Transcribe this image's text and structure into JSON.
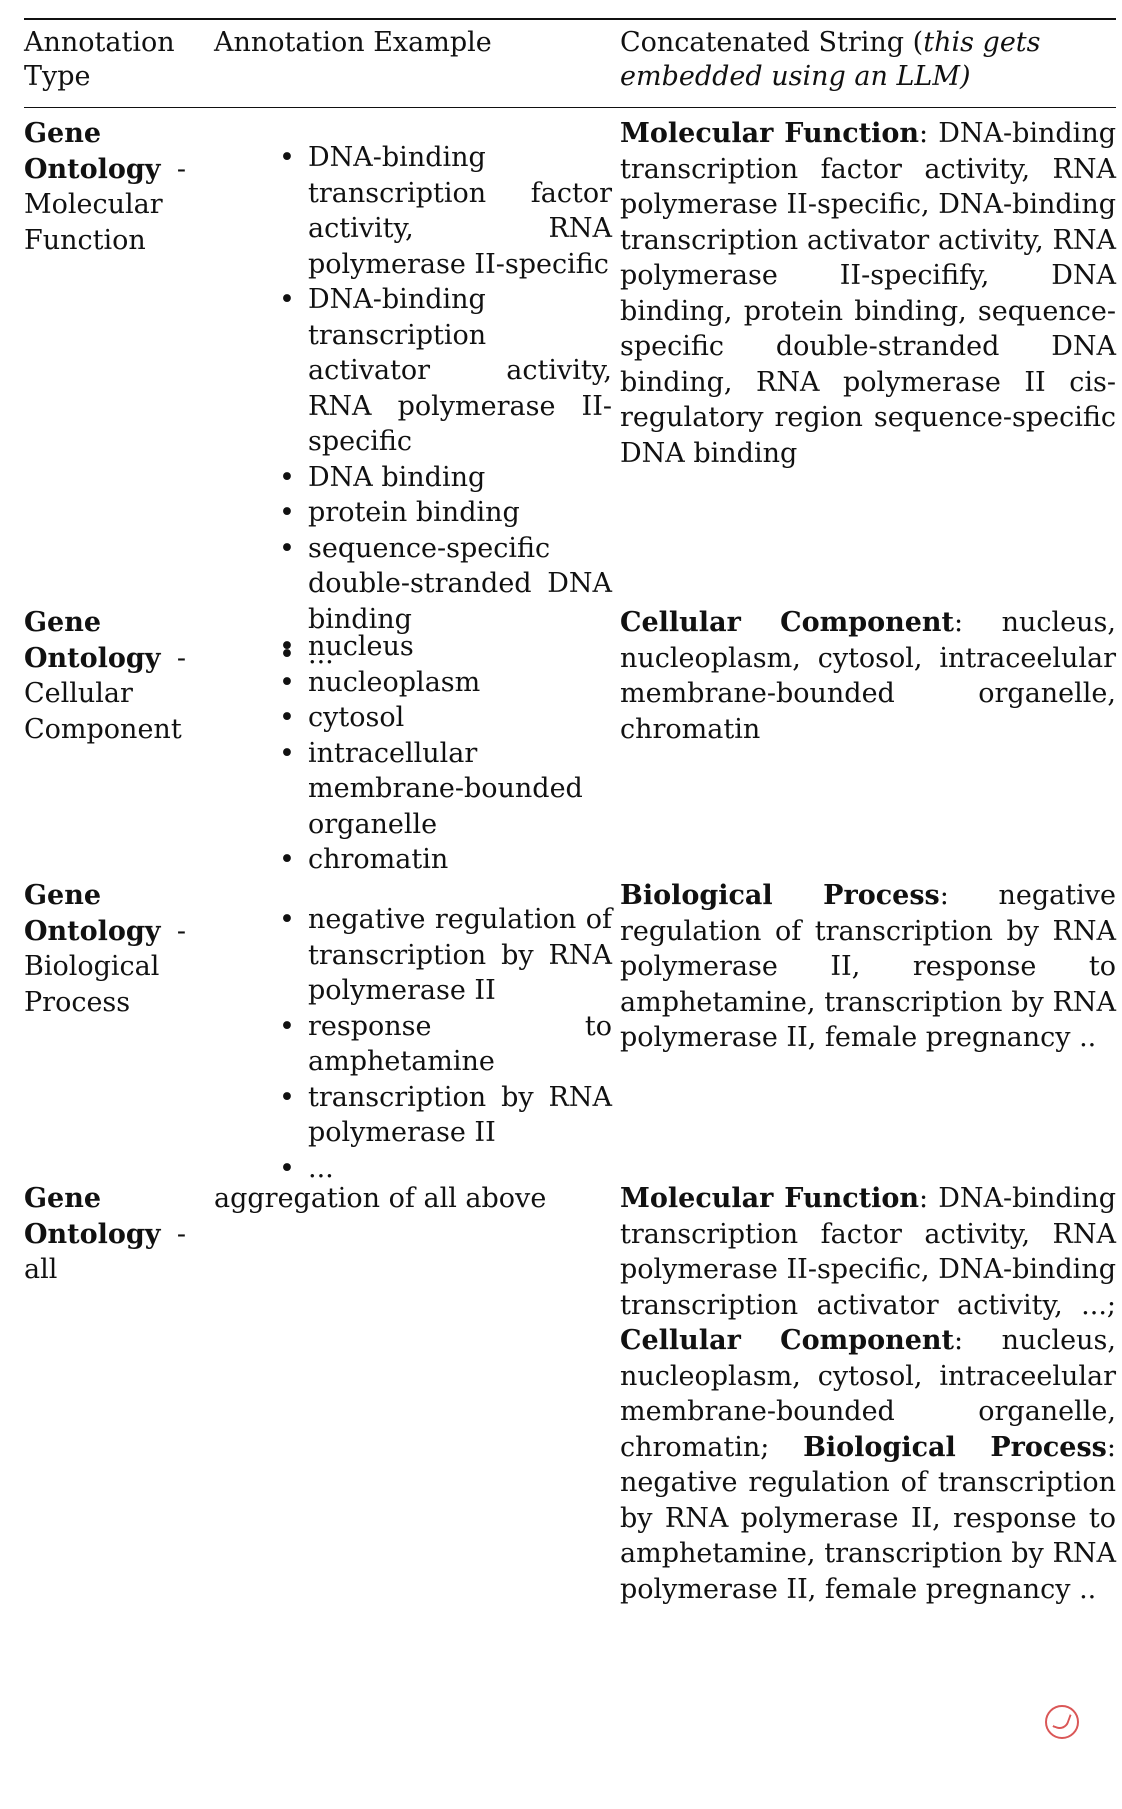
{
  "table": {
    "header": {
      "col1": "Annotation Type",
      "col2": "Annotation Example",
      "col3_prefix": "Concatenated String (",
      "col3_italic": "this gets embedded using an LLM)",
      "col3_suffix": ""
    },
    "rows": [
      {
        "type_bold": "Gene Ontology",
        "type_rest": " - Molecular Function",
        "examples": [
          "DNA-binding transcription factor activity, RNA polymerase II-specific",
          "DNA-binding transcription activator activity, RNA polymerase II-specific",
          "DNA binding",
          "protein binding",
          "sequence-specific double-stranded DNA binding",
          "..."
        ],
        "concat": [
          {
            "bold": "Molecular Function",
            "text": ": DNA-binding transcription factor activity, RNA polymerase II-specific, DNA-binding transcription activator activity, RNA polymerase II-specifify, DNA binding, protein binding, sequence-specific double-stranded DNA binding, RNA polymerase II cis-regulatory region sequence-specific DNA binding"
          }
        ]
      },
      {
        "type_bold": "Gene Ontology",
        "type_rest": " - Cellular Component",
        "examples": [
          "nucleus",
          "nucleoplasm",
          "cytosol",
          "intracellular membrane-bounded organelle",
          "chromatin"
        ],
        "concat": [
          {
            "bold": "Cellular Component",
            "text": ": nucleus, nucleoplasm, cytosol, intraceelular membrane-bounded organelle, chromatin"
          }
        ]
      },
      {
        "type_bold": "Gene Ontology",
        "type_rest": " - Biological Process",
        "examples": [
          "negative regulation of transcription by RNA polymerase II",
          "response to amphetamine",
          "transcription by RNA polymerase II",
          "..."
        ],
        "concat": [
          {
            "bold": "Biological Process",
            "text": ": negative regulation of transcription by RNA polymerase II, response to amphetamine, transcription by RNA polymerase II, female pregnancy .."
          }
        ]
      },
      {
        "type_bold": "Gene Ontology",
        "type_rest": " - all",
        "example_text": "aggregation of all above",
        "concat": [
          {
            "bold": "Molecular Function",
            "text": ": DNA-binding transcription factor activity, RNA polymerase II-specific, DNA-binding transcription activator activity, ...; "
          },
          {
            "bold": "Cellular Component",
            "text": ": nucleus, nucleoplasm, cytosol, intraceelular membrane-bounded organelle, chromatin; "
          },
          {
            "bold": "Biological Process",
            "text": ": negative regulation of transcription by RNA polymerase II, response to amphetamine, transcription by RNA polymerase II, female pregnancy .."
          }
        ]
      }
    ]
  }
}
